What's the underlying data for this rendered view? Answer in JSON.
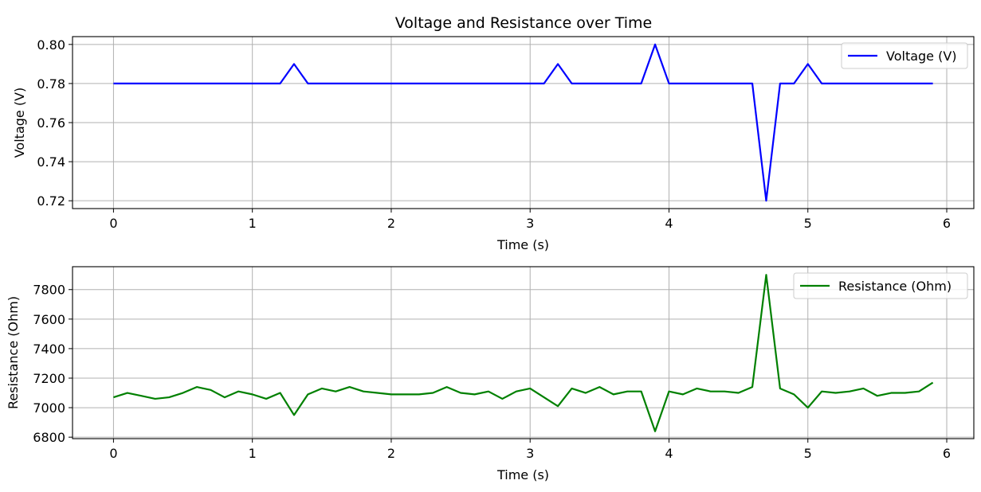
{
  "figure_title": "Voltage and Resistance over Time",
  "chart_data": [
    {
      "type": "line",
      "title": "Voltage and Resistance over Time",
      "xlabel": "Time (s)",
      "ylabel": "Voltage (V)",
      "xlim": [
        -0.295,
        6.195
      ],
      "ylim": [
        0.716,
        0.804
      ],
      "xticks": [
        0,
        1,
        2,
        3,
        4,
        5,
        6
      ],
      "xtick_labels": [
        "0",
        "1",
        "2",
        "3",
        "4",
        "5",
        "6"
      ],
      "yticks": [
        0.72,
        0.74,
        0.76,
        0.78,
        0.8
      ],
      "ytick_labels": [
        "0.72",
        "0.74",
        "0.76",
        "0.78",
        "0.80"
      ],
      "grid": true,
      "legend_position": "top-right",
      "series": [
        {
          "name": "Voltage (V)",
          "color": "#0000ff",
          "x": [
            0.0,
            0.1,
            0.2,
            0.3,
            0.4,
            0.5,
            0.6,
            0.7,
            0.8,
            0.9,
            1.0,
            1.1,
            1.2,
            1.3,
            1.4,
            1.5,
            1.6,
            1.7,
            1.8,
            1.9,
            2.0,
            2.1,
            2.2,
            2.3,
            2.4,
            2.5,
            2.6,
            2.7,
            2.8,
            2.9,
            3.0,
            3.1,
            3.2,
            3.3,
            3.4,
            3.5,
            3.6,
            3.7,
            3.8,
            3.9,
            4.0,
            4.1,
            4.2,
            4.3,
            4.4,
            4.5,
            4.6,
            4.7,
            4.8,
            4.9,
            5.0,
            5.1,
            5.2,
            5.3,
            5.4,
            5.5,
            5.6,
            5.7,
            5.8,
            5.9
          ],
          "y": [
            0.78,
            0.78,
            0.78,
            0.78,
            0.78,
            0.78,
            0.78,
            0.78,
            0.78,
            0.78,
            0.78,
            0.78,
            0.78,
            0.79,
            0.78,
            0.78,
            0.78,
            0.78,
            0.78,
            0.78,
            0.78,
            0.78,
            0.78,
            0.78,
            0.78,
            0.78,
            0.78,
            0.78,
            0.78,
            0.78,
            0.78,
            0.78,
            0.79,
            0.78,
            0.78,
            0.78,
            0.78,
            0.78,
            0.78,
            0.8,
            0.78,
            0.78,
            0.78,
            0.78,
            0.78,
            0.78,
            0.78,
            0.72,
            0.78,
            0.78,
            0.79,
            0.78,
            0.78,
            0.78,
            0.78,
            0.78,
            0.78,
            0.78,
            0.78,
            0.78
          ]
        }
      ]
    },
    {
      "type": "line",
      "title": "",
      "xlabel": "Time (s)",
      "ylabel": "Resistance (Ohm)",
      "xlim": [
        -0.295,
        6.195
      ],
      "ylim": [
        6790,
        7955
      ],
      "xticks": [
        0,
        1,
        2,
        3,
        4,
        5,
        6
      ],
      "xtick_labels": [
        "0",
        "1",
        "2",
        "3",
        "4",
        "5",
        "6"
      ],
      "yticks": [
        6800,
        7000,
        7200,
        7400,
        7600,
        7800
      ],
      "ytick_labels": [
        "6800",
        "7000",
        "7200",
        "7400",
        "7600",
        "7800"
      ],
      "grid": true,
      "legend_position": "top-right",
      "series": [
        {
          "name": "Resistance (Ohm)",
          "color": "#008000",
          "x": [
            0.0,
            0.1,
            0.2,
            0.3,
            0.4,
            0.5,
            0.6,
            0.7,
            0.8,
            0.9,
            1.0,
            1.1,
            1.2,
            1.3,
            1.4,
            1.5,
            1.6,
            1.7,
            1.8,
            1.9,
            2.0,
            2.1,
            2.2,
            2.3,
            2.4,
            2.5,
            2.6,
            2.7,
            2.8,
            2.9,
            3.0,
            3.1,
            3.2,
            3.3,
            3.4,
            3.5,
            3.6,
            3.7,
            3.8,
            3.9,
            4.0,
            4.1,
            4.2,
            4.3,
            4.4,
            4.5,
            4.6,
            4.7,
            4.8,
            4.9,
            5.0,
            5.1,
            5.2,
            5.3,
            5.4,
            5.5,
            5.6,
            5.7,
            5.8,
            5.9
          ],
          "y": [
            7070,
            7100,
            7080,
            7060,
            7070,
            7100,
            7140,
            7120,
            7070,
            7110,
            7090,
            7060,
            7100,
            6950,
            7090,
            7130,
            7110,
            7140,
            7110,
            7100,
            7090,
            7090,
            7090,
            7100,
            7140,
            7100,
            7090,
            7110,
            7060,
            7110,
            7130,
            7070,
            7010,
            7130,
            7100,
            7140,
            7090,
            7110,
            7110,
            6840,
            7110,
            7090,
            7130,
            7110,
            7110,
            7100,
            7140,
            7900,
            7130,
            7090,
            7000,
            7110,
            7100,
            7110,
            7130,
            7080,
            7100,
            7100,
            7110,
            7170
          ]
        }
      ]
    }
  ]
}
